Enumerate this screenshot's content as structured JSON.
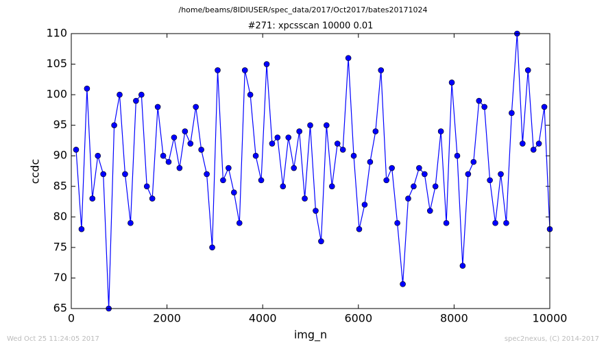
{
  "chart_data": {
    "type": "line",
    "suptitle": "/home/beams/8IDIUSER/spec_data/2017/Oct2017/bates20171024",
    "title": "#271: xpcsscan 10000 0.01",
    "xlabel": "img_n",
    "ylabel": "ccdc",
    "timestamp": "Wed Oct 25 11:24:05 2017",
    "credit": "spec2nexus, (C) 2014-2017",
    "x": [
      100,
      214,
      328,
      441,
      555,
      669,
      783,
      897,
      1010,
      1124,
      1238,
      1352,
      1466,
      1579,
      1693,
      1807,
      1921,
      2034,
      2148,
      2262,
      2376,
      2490,
      2603,
      2717,
      2831,
      2945,
      3059,
      3172,
      3286,
      3400,
      3514,
      3628,
      3741,
      3855,
      3969,
      4083,
      4197,
      4310,
      4424,
      4538,
      4652,
      4766,
      4879,
      4993,
      5107,
      5221,
      5334,
      5448,
      5562,
      5676,
      5790,
      5903,
      6017,
      6131,
      6245,
      6359,
      6472,
      6586,
      6700,
      6814,
      6928,
      7041,
      7155,
      7269,
      7383,
      7497,
      7610,
      7724,
      7838,
      7952,
      8066,
      8179,
      8293,
      8407,
      8521,
      8634,
      8748,
      8862,
      8976,
      9090,
      9203,
      9317,
      9431,
      9545,
      9659,
      9772,
      9886,
      10000
    ],
    "series": [
      {
        "color": "#0000ff",
        "values": [
          91,
          78,
          101,
          83,
          90,
          87,
          65,
          95,
          100,
          87,
          79,
          99,
          100,
          85,
          83,
          98,
          90,
          89,
          93,
          88,
          94,
          92,
          98,
          91,
          87,
          75,
          104,
          86,
          88,
          84,
          79,
          104,
          100,
          90,
          86,
          105,
          92,
          93,
          85,
          93,
          88,
          94,
          83,
          95,
          81,
          76,
          95,
          85,
          92,
          91,
          106,
          90,
          78,
          82,
          89,
          94,
          104,
          86,
          88,
          79,
          69,
          83,
          85,
          88,
          87,
          81,
          85,
          94,
          79,
          102,
          90,
          72,
          87,
          89,
          99,
          98,
          86,
          79,
          87,
          79,
          97,
          110,
          92,
          104,
          91,
          92,
          98,
          78
        ]
      }
    ],
    "xlim": [
      0,
      10000
    ],
    "xticks": [
      0,
      2000,
      4000,
      6000,
      8000,
      10000
    ],
    "ylim": [
      65,
      110
    ],
    "yticks": [
      65,
      70,
      75,
      80,
      85,
      90,
      95,
      100,
      105,
      110
    ]
  }
}
